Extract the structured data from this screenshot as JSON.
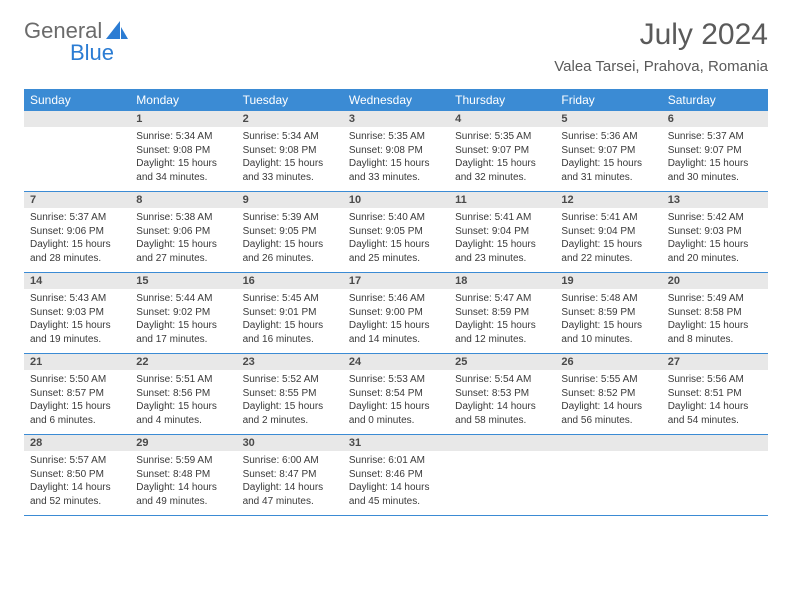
{
  "logo": {
    "text1": "General",
    "text2": "Blue"
  },
  "title": "July 2024",
  "location": "Valea Tarsei, Prahova, Romania",
  "colors": {
    "header_bg": "#3b8bd4",
    "header_text": "#ffffff",
    "daynum_bg": "#e8e8e8",
    "body_text": "#3a3a3a",
    "title_text": "#5a5a5a",
    "row_border": "#3b8bd4"
  },
  "day_labels": [
    "Sunday",
    "Monday",
    "Tuesday",
    "Wednesday",
    "Thursday",
    "Friday",
    "Saturday"
  ],
  "weeks": [
    [
      {
        "num": "",
        "sunrise": "",
        "sunset": "",
        "daylight": ""
      },
      {
        "num": "1",
        "sunrise": "Sunrise: 5:34 AM",
        "sunset": "Sunset: 9:08 PM",
        "daylight": "Daylight: 15 hours and 34 minutes."
      },
      {
        "num": "2",
        "sunrise": "Sunrise: 5:34 AM",
        "sunset": "Sunset: 9:08 PM",
        "daylight": "Daylight: 15 hours and 33 minutes."
      },
      {
        "num": "3",
        "sunrise": "Sunrise: 5:35 AM",
        "sunset": "Sunset: 9:08 PM",
        "daylight": "Daylight: 15 hours and 33 minutes."
      },
      {
        "num": "4",
        "sunrise": "Sunrise: 5:35 AM",
        "sunset": "Sunset: 9:07 PM",
        "daylight": "Daylight: 15 hours and 32 minutes."
      },
      {
        "num": "5",
        "sunrise": "Sunrise: 5:36 AM",
        "sunset": "Sunset: 9:07 PM",
        "daylight": "Daylight: 15 hours and 31 minutes."
      },
      {
        "num": "6",
        "sunrise": "Sunrise: 5:37 AM",
        "sunset": "Sunset: 9:07 PM",
        "daylight": "Daylight: 15 hours and 30 minutes."
      }
    ],
    [
      {
        "num": "7",
        "sunrise": "Sunrise: 5:37 AM",
        "sunset": "Sunset: 9:06 PM",
        "daylight": "Daylight: 15 hours and 28 minutes."
      },
      {
        "num": "8",
        "sunrise": "Sunrise: 5:38 AM",
        "sunset": "Sunset: 9:06 PM",
        "daylight": "Daylight: 15 hours and 27 minutes."
      },
      {
        "num": "9",
        "sunrise": "Sunrise: 5:39 AM",
        "sunset": "Sunset: 9:05 PM",
        "daylight": "Daylight: 15 hours and 26 minutes."
      },
      {
        "num": "10",
        "sunrise": "Sunrise: 5:40 AM",
        "sunset": "Sunset: 9:05 PM",
        "daylight": "Daylight: 15 hours and 25 minutes."
      },
      {
        "num": "11",
        "sunrise": "Sunrise: 5:41 AM",
        "sunset": "Sunset: 9:04 PM",
        "daylight": "Daylight: 15 hours and 23 minutes."
      },
      {
        "num": "12",
        "sunrise": "Sunrise: 5:41 AM",
        "sunset": "Sunset: 9:04 PM",
        "daylight": "Daylight: 15 hours and 22 minutes."
      },
      {
        "num": "13",
        "sunrise": "Sunrise: 5:42 AM",
        "sunset": "Sunset: 9:03 PM",
        "daylight": "Daylight: 15 hours and 20 minutes."
      }
    ],
    [
      {
        "num": "14",
        "sunrise": "Sunrise: 5:43 AM",
        "sunset": "Sunset: 9:03 PM",
        "daylight": "Daylight: 15 hours and 19 minutes."
      },
      {
        "num": "15",
        "sunrise": "Sunrise: 5:44 AM",
        "sunset": "Sunset: 9:02 PM",
        "daylight": "Daylight: 15 hours and 17 minutes."
      },
      {
        "num": "16",
        "sunrise": "Sunrise: 5:45 AM",
        "sunset": "Sunset: 9:01 PM",
        "daylight": "Daylight: 15 hours and 16 minutes."
      },
      {
        "num": "17",
        "sunrise": "Sunrise: 5:46 AM",
        "sunset": "Sunset: 9:00 PM",
        "daylight": "Daylight: 15 hours and 14 minutes."
      },
      {
        "num": "18",
        "sunrise": "Sunrise: 5:47 AM",
        "sunset": "Sunset: 8:59 PM",
        "daylight": "Daylight: 15 hours and 12 minutes."
      },
      {
        "num": "19",
        "sunrise": "Sunrise: 5:48 AM",
        "sunset": "Sunset: 8:59 PM",
        "daylight": "Daylight: 15 hours and 10 minutes."
      },
      {
        "num": "20",
        "sunrise": "Sunrise: 5:49 AM",
        "sunset": "Sunset: 8:58 PM",
        "daylight": "Daylight: 15 hours and 8 minutes."
      }
    ],
    [
      {
        "num": "21",
        "sunrise": "Sunrise: 5:50 AM",
        "sunset": "Sunset: 8:57 PM",
        "daylight": "Daylight: 15 hours and 6 minutes."
      },
      {
        "num": "22",
        "sunrise": "Sunrise: 5:51 AM",
        "sunset": "Sunset: 8:56 PM",
        "daylight": "Daylight: 15 hours and 4 minutes."
      },
      {
        "num": "23",
        "sunrise": "Sunrise: 5:52 AM",
        "sunset": "Sunset: 8:55 PM",
        "daylight": "Daylight: 15 hours and 2 minutes."
      },
      {
        "num": "24",
        "sunrise": "Sunrise: 5:53 AM",
        "sunset": "Sunset: 8:54 PM",
        "daylight": "Daylight: 15 hours and 0 minutes."
      },
      {
        "num": "25",
        "sunrise": "Sunrise: 5:54 AM",
        "sunset": "Sunset: 8:53 PM",
        "daylight": "Daylight: 14 hours and 58 minutes."
      },
      {
        "num": "26",
        "sunrise": "Sunrise: 5:55 AM",
        "sunset": "Sunset: 8:52 PM",
        "daylight": "Daylight: 14 hours and 56 minutes."
      },
      {
        "num": "27",
        "sunrise": "Sunrise: 5:56 AM",
        "sunset": "Sunset: 8:51 PM",
        "daylight": "Daylight: 14 hours and 54 minutes."
      }
    ],
    [
      {
        "num": "28",
        "sunrise": "Sunrise: 5:57 AM",
        "sunset": "Sunset: 8:50 PM",
        "daylight": "Daylight: 14 hours and 52 minutes."
      },
      {
        "num": "29",
        "sunrise": "Sunrise: 5:59 AM",
        "sunset": "Sunset: 8:48 PM",
        "daylight": "Daylight: 14 hours and 49 minutes."
      },
      {
        "num": "30",
        "sunrise": "Sunrise: 6:00 AM",
        "sunset": "Sunset: 8:47 PM",
        "daylight": "Daylight: 14 hours and 47 minutes."
      },
      {
        "num": "31",
        "sunrise": "Sunrise: 6:01 AM",
        "sunset": "Sunset: 8:46 PM",
        "daylight": "Daylight: 14 hours and 45 minutes."
      },
      {
        "num": "",
        "sunrise": "",
        "sunset": "",
        "daylight": ""
      },
      {
        "num": "",
        "sunrise": "",
        "sunset": "",
        "daylight": ""
      },
      {
        "num": "",
        "sunrise": "",
        "sunset": "",
        "daylight": ""
      }
    ]
  ]
}
